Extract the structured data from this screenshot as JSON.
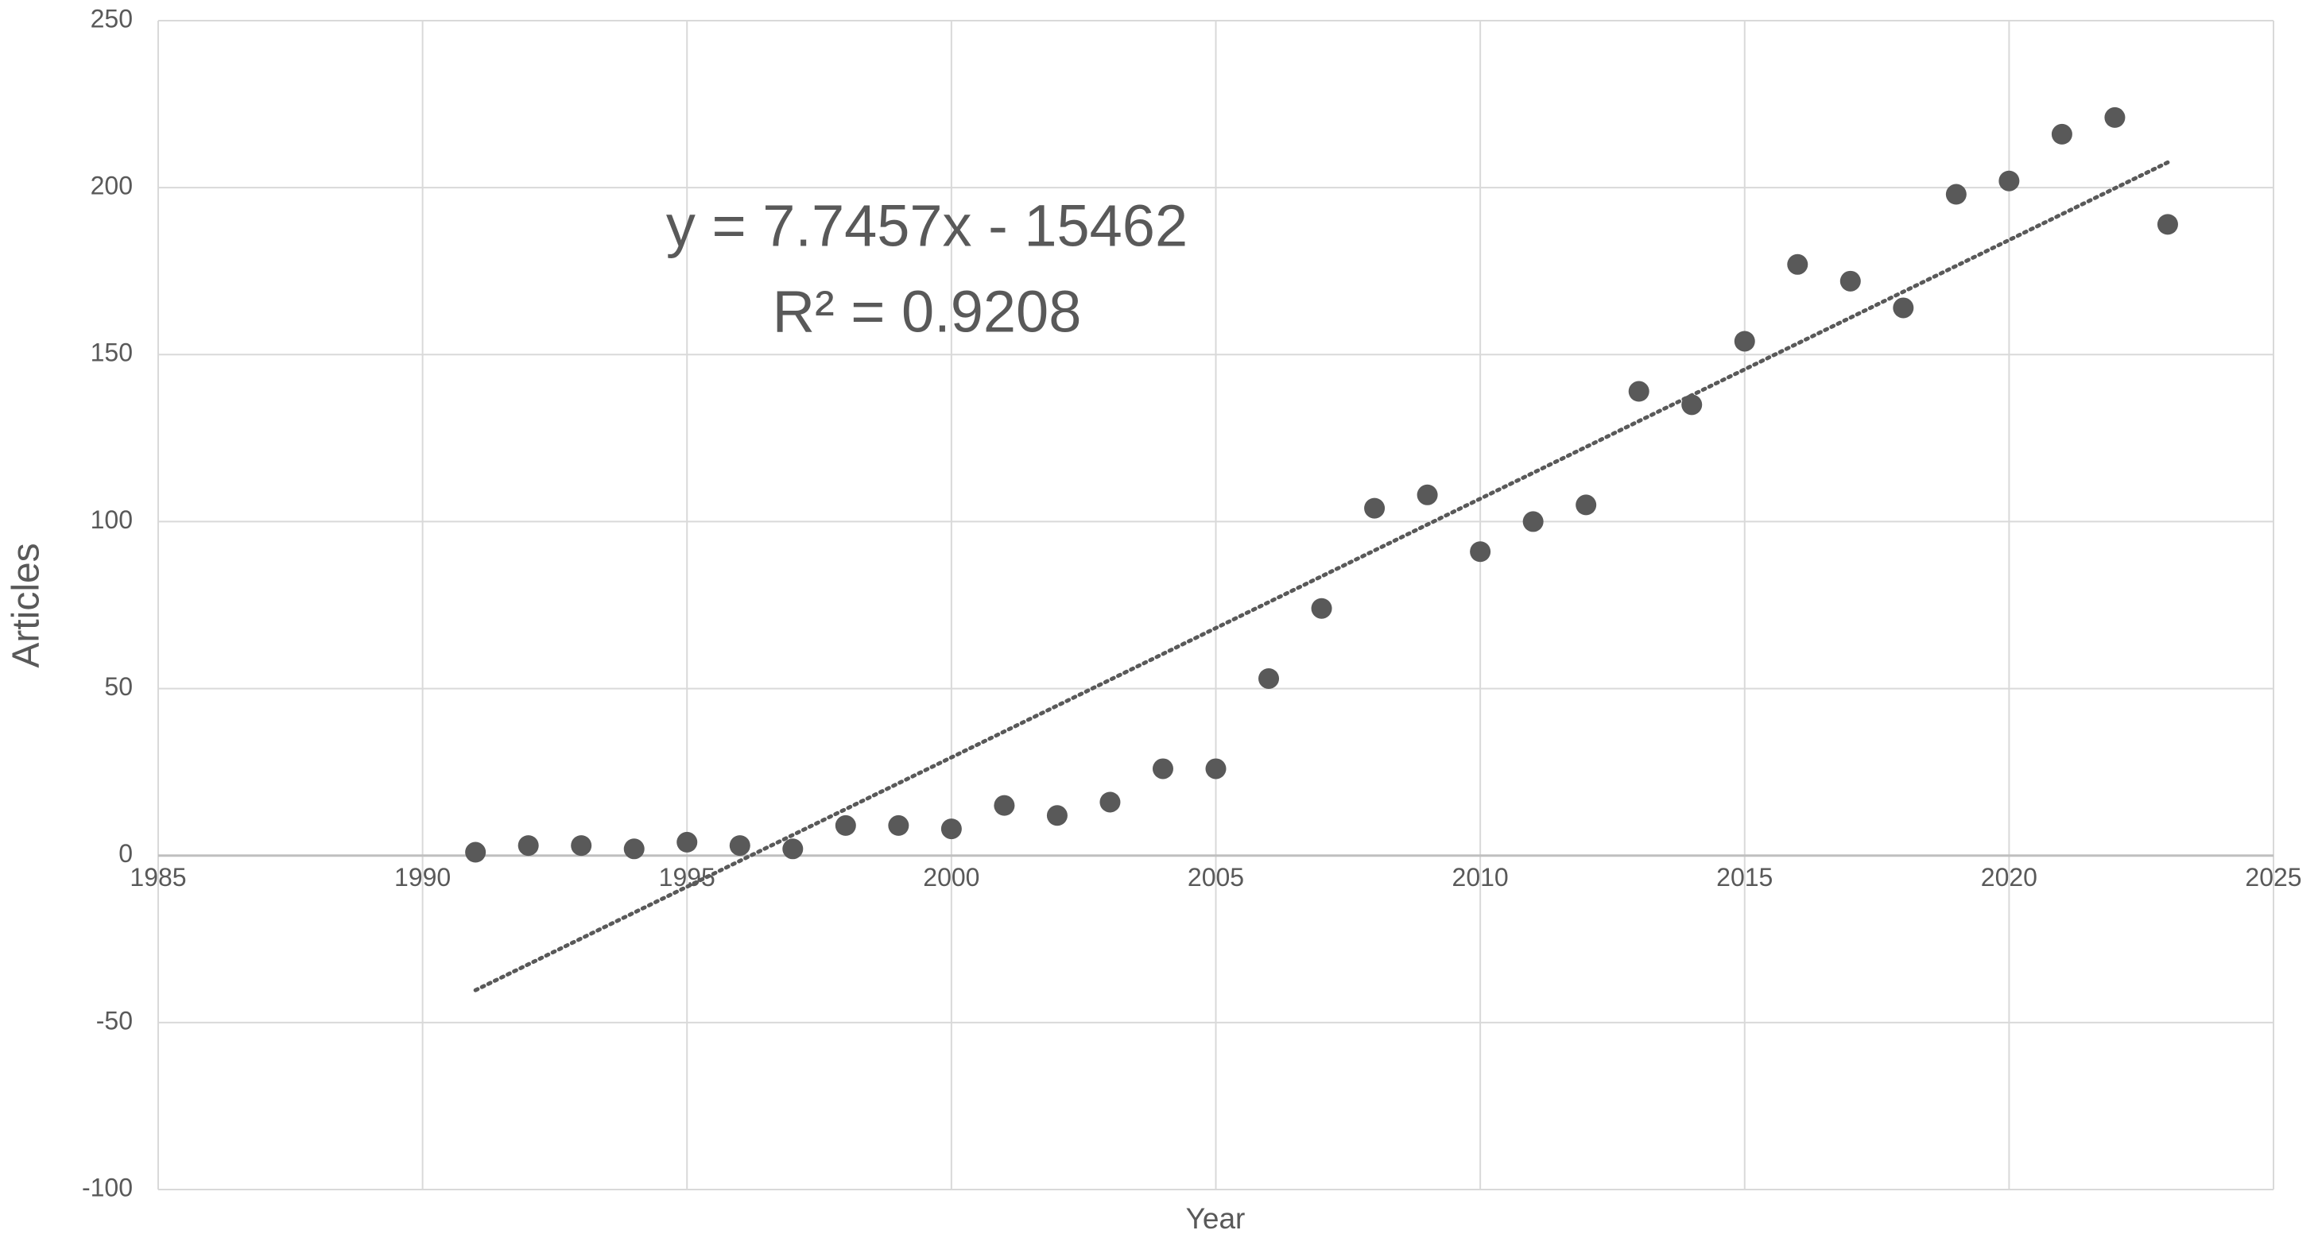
{
  "chart_data": {
    "type": "scatter",
    "x_label": "Year",
    "y_label": "Articles",
    "x": [
      1991,
      1992,
      1993,
      1994,
      1995,
      1996,
      1997,
      1998,
      1999,
      2000,
      2001,
      2002,
      2003,
      2004,
      2005,
      2006,
      2007,
      2008,
      2009,
      2010,
      2011,
      2012,
      2013,
      2014,
      2015,
      2016,
      2017,
      2018,
      2019,
      2020,
      2021,
      2022,
      2023
    ],
    "series": [
      {
        "name": "Articles",
        "color": "#595959",
        "values": [
          1,
          3,
          3,
          2,
          4,
          3,
          2,
          9,
          9,
          8,
          15,
          12,
          16,
          26,
          26,
          53,
          74,
          104,
          108,
          91,
          100,
          105,
          139,
          135,
          154,
          177,
          172,
          164,
          198,
          202,
          216,
          221,
          189
        ]
      }
    ],
    "trendline": {
      "slope": 7.7457,
      "intercept": -15462,
      "color": "#595959",
      "equation": "y = 7.7457x - 15462",
      "r_squared": "R² = 0.9208"
    },
    "xlim": [
      1985,
      2025
    ],
    "xticks": [
      1985,
      1990,
      1995,
      2000,
      2005,
      2010,
      2015,
      2020,
      2025
    ],
    "ylim": [
      -100,
      250
    ],
    "yticks": [
      -100,
      -50,
      0,
      50,
      100,
      150,
      200,
      250
    ],
    "grid": true
  }
}
